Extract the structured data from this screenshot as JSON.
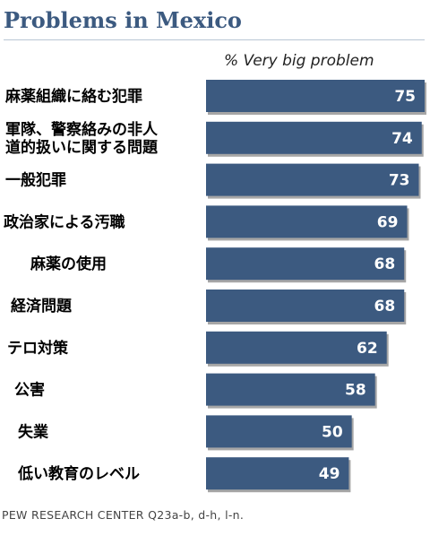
{
  "chart_data": {
    "type": "bar",
    "orientation": "horizontal",
    "title": "Problems in Mexico",
    "ylabel": "% Very big problem",
    "categories": [
      [
        "麻薬組織に絡む犯罪"
      ],
      [
        "軍隊、警察絡みの非人",
        "道的扱いに関する問題"
      ],
      [
        "一般犯罪"
      ],
      [
        "政治家による汚職"
      ],
      [
        "麻薬の使用"
      ],
      [
        "経済問題"
      ],
      [
        "テロ対策"
      ],
      [
        "公害"
      ],
      [
        "失業"
      ],
      [
        "低い教育のレベル"
      ]
    ],
    "values": [
      75,
      74,
      73,
      69,
      68,
      68,
      62,
      58,
      50,
      49
    ],
    "xlim": [
      0,
      75
    ],
    "grid": false,
    "data_labels": true,
    "bar_color": "#3c5a80"
  },
  "source": "PEW RESEARCH CENTER Q23a-b, d-h, l-n."
}
